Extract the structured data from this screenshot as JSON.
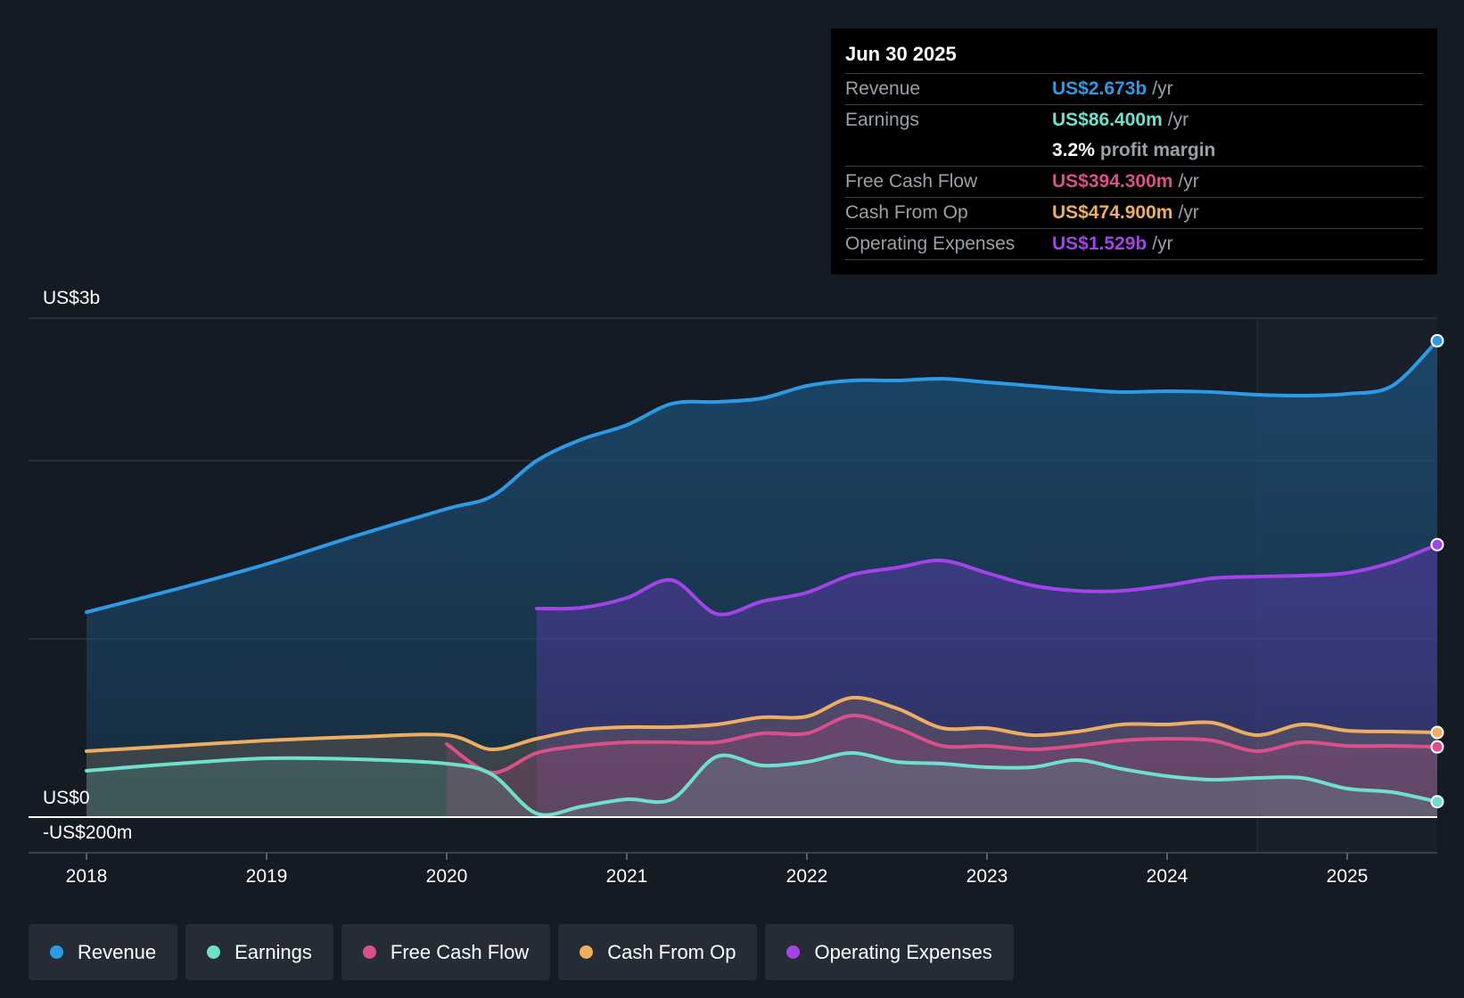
{
  "tooltip": {
    "date": "Jun 30 2025",
    "rows": [
      {
        "label": "Revenue",
        "value": "US$2.673b",
        "unit": "/yr",
        "color": "#2d9ae6"
      },
      {
        "label": "Earnings",
        "value": "US$86.400m",
        "unit": "/yr",
        "color": "#6fe0cc"
      },
      {
        "label": "",
        "value": "3.2%",
        "unit": "profit margin",
        "color": "#ffffff"
      },
      {
        "label": "Free Cash Flow",
        "value": "US$394.300m",
        "unit": "/yr",
        "color": "#d9508a"
      },
      {
        "label": "Cash From Op",
        "value": "US$474.900m",
        "unit": "/yr",
        "color": "#eeae62"
      },
      {
        "label": "Operating Expenses",
        "value": "US$1.529b",
        "unit": "/yr",
        "color": "#a244e8"
      }
    ]
  },
  "legend": [
    {
      "label": "Revenue",
      "color": "#2d9ae6"
    },
    {
      "label": "Earnings",
      "color": "#6fe0cc"
    },
    {
      "label": "Free Cash Flow",
      "color": "#d9508a"
    },
    {
      "label": "Cash From Op",
      "color": "#eeae62"
    },
    {
      "label": "Operating Expenses",
      "color": "#a244e8"
    }
  ],
  "chart_data": {
    "type": "area",
    "title": "",
    "y_axis_labels": [
      "US$3b",
      "US$0",
      "-US$200m"
    ],
    "ylim": [
      -200,
      2800
    ],
    "x_ticks": [
      2018,
      2019,
      2020,
      2021,
      2022,
      2023,
      2024,
      2025
    ],
    "xlim": [
      2018,
      2025.5
    ],
    "gridlines": [
      0,
      1000,
      2000,
      2800
    ],
    "highlight_start": 2024.5,
    "series": [
      {
        "name": "Revenue",
        "color": "#2d9ae6",
        "x": [
          2018,
          2018.5,
          2019,
          2019.5,
          2020,
          2020.25,
          2020.5,
          2020.75,
          2021,
          2021.25,
          2021.5,
          2021.75,
          2022,
          2022.25,
          2022.5,
          2022.75,
          2023,
          2023.25,
          2023.5,
          2023.75,
          2024,
          2024.25,
          2024.5,
          2024.75,
          2025,
          2025.25,
          2025.5
        ],
        "values": [
          1150,
          1280,
          1420,
          1580,
          1730,
          1800,
          2000,
          2120,
          2200,
          2320,
          2330,
          2350,
          2420,
          2450,
          2450,
          2460,
          2440,
          2420,
          2400,
          2385,
          2390,
          2385,
          2370,
          2365,
          2375,
          2420,
          2673
        ]
      },
      {
        "name": "Operating Expenses",
        "color": "#a244e8",
        "x": [
          2020.5,
          2020.75,
          2021,
          2021.25,
          2021.5,
          2021.75,
          2022,
          2022.25,
          2022.5,
          2022.75,
          2023,
          2023.25,
          2023.5,
          2023.75,
          2024,
          2024.25,
          2024.5,
          2024.75,
          2025,
          2025.25,
          2025.5
        ],
        "values": [
          1170,
          1175,
          1230,
          1330,
          1140,
          1210,
          1260,
          1360,
          1400,
          1440,
          1370,
          1300,
          1270,
          1270,
          1300,
          1340,
          1350,
          1355,
          1370,
          1430,
          1529
        ]
      },
      {
        "name": "Cash From Op",
        "color": "#eeae62",
        "x": [
          2018,
          2018.5,
          2019,
          2019.5,
          2020,
          2020.25,
          2020.5,
          2020.75,
          2021,
          2021.25,
          2021.5,
          2021.75,
          2022,
          2022.25,
          2022.5,
          2022.75,
          2023,
          2023.25,
          2023.5,
          2023.75,
          2024,
          2024.25,
          2024.5,
          2024.75,
          2025,
          2025.25,
          2025.5
        ],
        "values": [
          370,
          400,
          430,
          450,
          460,
          380,
          440,
          490,
          505,
          505,
          520,
          560,
          565,
          670,
          610,
          500,
          500,
          460,
          480,
          520,
          520,
          530,
          460,
          520,
          485,
          480,
          474.9
        ]
      },
      {
        "name": "Free Cash Flow",
        "color": "#d9508a",
        "x": [
          2020,
          2020.25,
          2020.5,
          2020.75,
          2021,
          2021.25,
          2021.5,
          2021.75,
          2022,
          2022.25,
          2022.5,
          2022.75,
          2023,
          2023.25,
          2023.5,
          2023.75,
          2024,
          2024.25,
          2024.5,
          2024.75,
          2025,
          2025.25,
          2025.5
        ],
        "values": [
          410,
          250,
          360,
          400,
          420,
          420,
          420,
          470,
          470,
          570,
          500,
          400,
          400,
          380,
          400,
          430,
          440,
          430,
          370,
          420,
          400,
          400,
          394.3
        ]
      },
      {
        "name": "Earnings",
        "color": "#6fe0cc",
        "x": [
          2018,
          2018.5,
          2019,
          2019.5,
          2020,
          2020.25,
          2020.5,
          2020.75,
          2021,
          2021.25,
          2021.5,
          2021.75,
          2022,
          2022.25,
          2022.5,
          2022.75,
          2023,
          2023.25,
          2023.5,
          2023.75,
          2024,
          2024.25,
          2024.5,
          2024.75,
          2025,
          2025.25,
          2025.5
        ],
        "values": [
          260,
          300,
          330,
          325,
          300,
          240,
          20,
          60,
          100,
          100,
          340,
          290,
          310,
          360,
          310,
          300,
          280,
          280,
          320,
          270,
          230,
          210,
          220,
          220,
          160,
          140,
          86.4
        ]
      }
    ]
  }
}
